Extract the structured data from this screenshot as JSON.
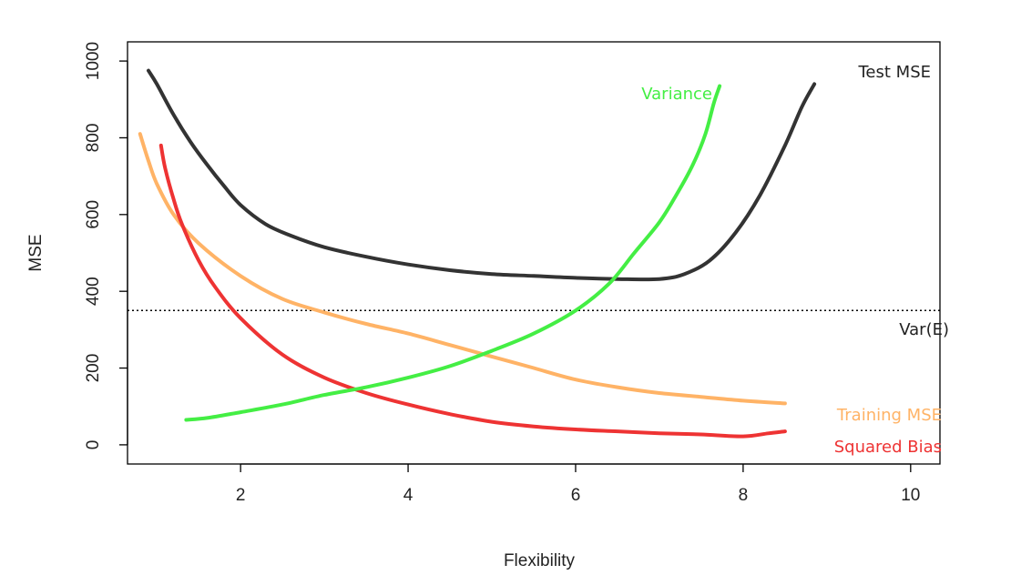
{
  "chart_data": {
    "type": "line",
    "xlabel": "Flexibility",
    "ylabel": "MSE",
    "xlim": [
      0.65,
      10.35
    ],
    "ylim": [
      -50,
      1050
    ],
    "xticks": [
      2,
      4,
      6,
      8,
      10
    ],
    "yticks": [
      0,
      200,
      400,
      600,
      800,
      1000
    ],
    "grid": false,
    "reference_lines": [
      {
        "label": "Var(E)",
        "y": 350,
        "style": "dotted",
        "color": "#000000"
      }
    ],
    "series": [
      {
        "name": "Test MSE",
        "color": "#333333",
        "x": [
          0.9,
          1.0,
          1.2,
          1.4,
          1.6,
          1.8,
          2.0,
          2.3,
          2.6,
          3.0,
          3.5,
          4.0,
          4.5,
          5.0,
          5.5,
          6.0,
          6.5,
          7.0,
          7.3,
          7.6,
          7.9,
          8.2,
          8.5,
          8.7,
          8.85
        ],
        "y": [
          975,
          940,
          860,
          790,
          730,
          675,
          625,
          575,
          545,
          515,
          490,
          470,
          455,
          445,
          440,
          435,
          432,
          432,
          445,
          480,
          550,
          650,
          780,
          880,
          940
        ]
      },
      {
        "name": "Training MSE",
        "color": "#FFB366",
        "x": [
          0.8,
          0.9,
          1.0,
          1.2,
          1.5,
          2.0,
          2.5,
          3.0,
          3.5,
          4.0,
          4.5,
          5.0,
          5.5,
          6.0,
          6.5,
          7.0,
          7.5,
          8.0,
          8.5
        ],
        "y": [
          810,
          740,
          680,
          600,
          525,
          440,
          380,
          345,
          315,
          290,
          260,
          230,
          200,
          170,
          150,
          135,
          125,
          115,
          108
        ]
      },
      {
        "name": "Squared Bias",
        "color": "#EE3333",
        "x": [
          1.05,
          1.1,
          1.2,
          1.3,
          1.5,
          1.7,
          2.0,
          2.5,
          3.0,
          3.5,
          4.0,
          4.5,
          5.0,
          5.5,
          6.0,
          6.5,
          7.0,
          7.5,
          8.0,
          8.3,
          8.5
        ],
        "y": [
          780,
          720,
          640,
          575,
          480,
          410,
          330,
          235,
          175,
          135,
          105,
          80,
          60,
          48,
          40,
          35,
          30,
          27,
          22,
          30,
          35
        ]
      },
      {
        "name": "Variance",
        "color": "#44EE44",
        "x": [
          1.35,
          1.6,
          2.0,
          2.5,
          3.0,
          3.5,
          4.0,
          4.5,
          5.0,
          5.5,
          6.0,
          6.4,
          6.7,
          7.0,
          7.2,
          7.4,
          7.55,
          7.65,
          7.72
        ],
        "y": [
          65,
          70,
          85,
          105,
          130,
          150,
          175,
          205,
          245,
          290,
          350,
          420,
          500,
          580,
          650,
          730,
          810,
          890,
          935
        ]
      }
    ]
  },
  "labels": {
    "test_mse": "Test MSE",
    "variance": "Variance",
    "training_mse": "Training MSE",
    "squared_bias": "Squared Bias",
    "var_e": "Var(E)"
  }
}
